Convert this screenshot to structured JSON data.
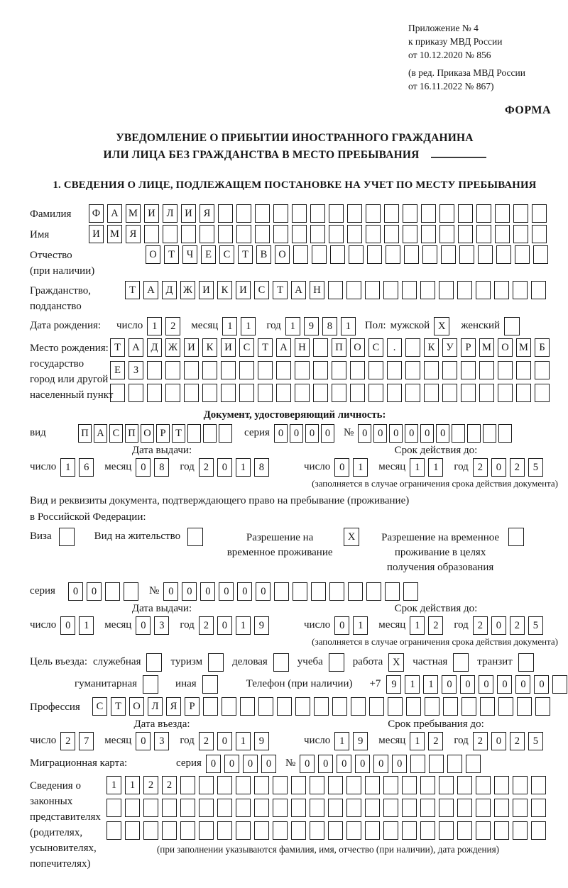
{
  "labels": {
    "day": "число",
    "month": "месяц",
    "year": "год",
    "series": "серия",
    "number": "№",
    "kind": "вид",
    "phone_prefix": "+7"
  },
  "header": {
    "annex1": "Приложение № 4",
    "annex2": "к приказу МВД России",
    "annex3": "от 10.12.2020 № 856",
    "amend1": "(в ред. Приказа МВД России",
    "amend2": "от 16.11.2022 № 867)",
    "form": "ФОРМА"
  },
  "title": {
    "line1": "УВЕДОМЛЕНИЕ О ПРИБЫТИИ ИНОСТРАННОГО ГРАЖДАНИНА",
    "line2": "ИЛИ ЛИЦА БЕЗ ГРАЖДАНСТВА В МЕСТО ПРЕБЫВАНИЯ"
  },
  "section1_heading": "1. СВЕДЕНИЯ О ЛИЦЕ, ПОДЛЕЖАЩЕМ ПОСТАНОВКЕ НА УЧЕТ ПО МЕСТУ ПРЕБЫВАНИЯ",
  "surname": {
    "label": "Фамилия",
    "boxes": {
      "v": "ФАМИЛИЯ",
      "n": 25
    }
  },
  "firstname": {
    "label": "Имя",
    "boxes": {
      "v": "ИМЯ",
      "n": 25
    }
  },
  "patronymic": {
    "label1": "Отчество",
    "label2": "(при наличии)",
    "boxes": {
      "v": "ОТЧЕСТВО",
      "n": 22
    }
  },
  "citizenship": {
    "label1": "Гражданство,",
    "label2": "подданство",
    "boxes": {
      "v": "ТАДЖИКИСТАН",
      "n": 23
    }
  },
  "birth": {
    "label": "Дата рождения:",
    "d": {
      "v": "12",
      "n": 2
    },
    "m": {
      "v": "11",
      "n": 2
    },
    "y": {
      "v": "1981",
      "n": 4
    },
    "sex_label": "Пол:",
    "male": "мужской",
    "male_box": {
      "v": "X",
      "n": 1
    },
    "female": "женский",
    "female_box": {
      "v": "",
      "n": 1
    }
  },
  "birthplace": {
    "l1": "Место рождения:",
    "l2": "государство",
    "l3": "город или другой",
    "l4": "населенный пункт",
    "row1": {
      "v": "ТАДЖИКИСТАН ПОС. КУРМОМБ",
      "n": 24
    },
    "row2": {
      "v": "ЕЗ",
      "n": 24
    },
    "row3": {
      "v": "",
      "n": 24
    }
  },
  "iddoc": {
    "heading": "Документ, удостоверяющий личность:",
    "kind": {
      "v": "ПАСПОРТ",
      "n": 10
    },
    "series": {
      "v": "0000",
      "n": 4
    },
    "number": {
      "v": "000000",
      "n": 10
    },
    "issue_head": "Дата выдачи:",
    "issue_d": {
      "v": "16",
      "n": 2
    },
    "issue_m": {
      "v": "08",
      "n": 2
    },
    "issue_y": {
      "v": "2018",
      "n": 4
    },
    "valid_head": "Срок действия до:",
    "valid_d": {
      "v": "01",
      "n": 2
    },
    "valid_m": {
      "v": "11",
      "n": 2
    },
    "valid_y": {
      "v": "2025",
      "n": 4
    },
    "note": "(заполняется в случае ограничения срока действия документа)"
  },
  "resdoc": {
    "line1": "Вид и реквизиты документа, подтверждающего право на пребывание (проживание)",
    "line2": "в Российской Федерации:",
    "opt1": "Виза",
    "opt1_box": {
      "v": "",
      "n": 1
    },
    "opt2": "Вид на жительство",
    "opt2_box": {
      "v": "",
      "n": 1
    },
    "opt3": "Разрешение на временное проживание",
    "opt3_box": {
      "v": "X",
      "n": 1
    },
    "opt4": "Разрешение на временное проживание в целях получения образования",
    "opt4_box": {
      "v": "",
      "n": 1
    },
    "series": {
      "v": "00",
      "n": 4
    },
    "number": {
      "v": "000000",
      "n": 14
    },
    "issue_head": "Дата выдачи:",
    "issue_d": {
      "v": "01",
      "n": 2
    },
    "issue_m": {
      "v": "03",
      "n": 2
    },
    "issue_y": {
      "v": "2019",
      "n": 4
    },
    "valid_head": "Срок действия до:",
    "valid_d": {
      "v": "01",
      "n": 2
    },
    "valid_m": {
      "v": "12",
      "n": 2
    },
    "valid_y": {
      "v": "2025",
      "n": 4
    },
    "note": "(заполняется в случае ограничения срока действия документа)"
  },
  "purpose": {
    "label": "Цель въезда:",
    "opts": [
      {
        "label": "служебная",
        "box": {
          "v": "",
          "n": 1
        }
      },
      {
        "label": "туризм",
        "box": {
          "v": "",
          "n": 1
        }
      },
      {
        "label": "деловая",
        "box": {
          "v": "",
          "n": 1
        }
      },
      {
        "label": "учеба",
        "box": {
          "v": "",
          "n": 1
        }
      },
      {
        "label": "работа",
        "box": {
          "v": "X",
          "n": 1
        }
      },
      {
        "label": "частная",
        "box": {
          "v": "",
          "n": 1
        }
      },
      {
        "label": "транзит",
        "box": {
          "v": "",
          "n": 1
        }
      }
    ],
    "opt8": "гуманитарная",
    "opt8_box": {
      "v": "",
      "n": 1
    },
    "opt9": "иная",
    "opt9_box": {
      "v": "",
      "n": 1
    },
    "phone_label": "Телефон (при наличии)",
    "phone": {
      "v": "911000000",
      "n": 10
    }
  },
  "profession": {
    "label": "Профессия",
    "boxes": {
      "v": "СТОЛЯР",
      "n": 25
    }
  },
  "entry": {
    "head": "Дата въезда:",
    "d": {
      "v": "27",
      "n": 2
    },
    "m": {
      "v": "03",
      "n": 2
    },
    "y": {
      "v": "2019",
      "n": 4
    }
  },
  "stay": {
    "head": "Срок пребывания до:",
    "d": {
      "v": "19",
      "n": 2
    },
    "m": {
      "v": "12",
      "n": 2
    },
    "y": {
      "v": "2025",
      "n": 4
    }
  },
  "migcard": {
    "label": "Миграционная карта:",
    "series": {
      "v": "0000",
      "n": 4
    },
    "number": {
      "v": "000000",
      "n": 10
    }
  },
  "reps": {
    "l1": "Сведения о",
    "l2": "законных",
    "l3": "представителях",
    "l4": "(родителях,",
    "l5": "усыновителях,",
    "l6": "попечителях)",
    "row1": {
      "v": "1122",
      "n": 24
    },
    "row2": {
      "v": "",
      "n": 24
    },
    "row3": {
      "v": "",
      "n": 24
    },
    "note": "(при заполнении указываются фамилия, имя, отчество (при наличии), дата рождения)"
  }
}
